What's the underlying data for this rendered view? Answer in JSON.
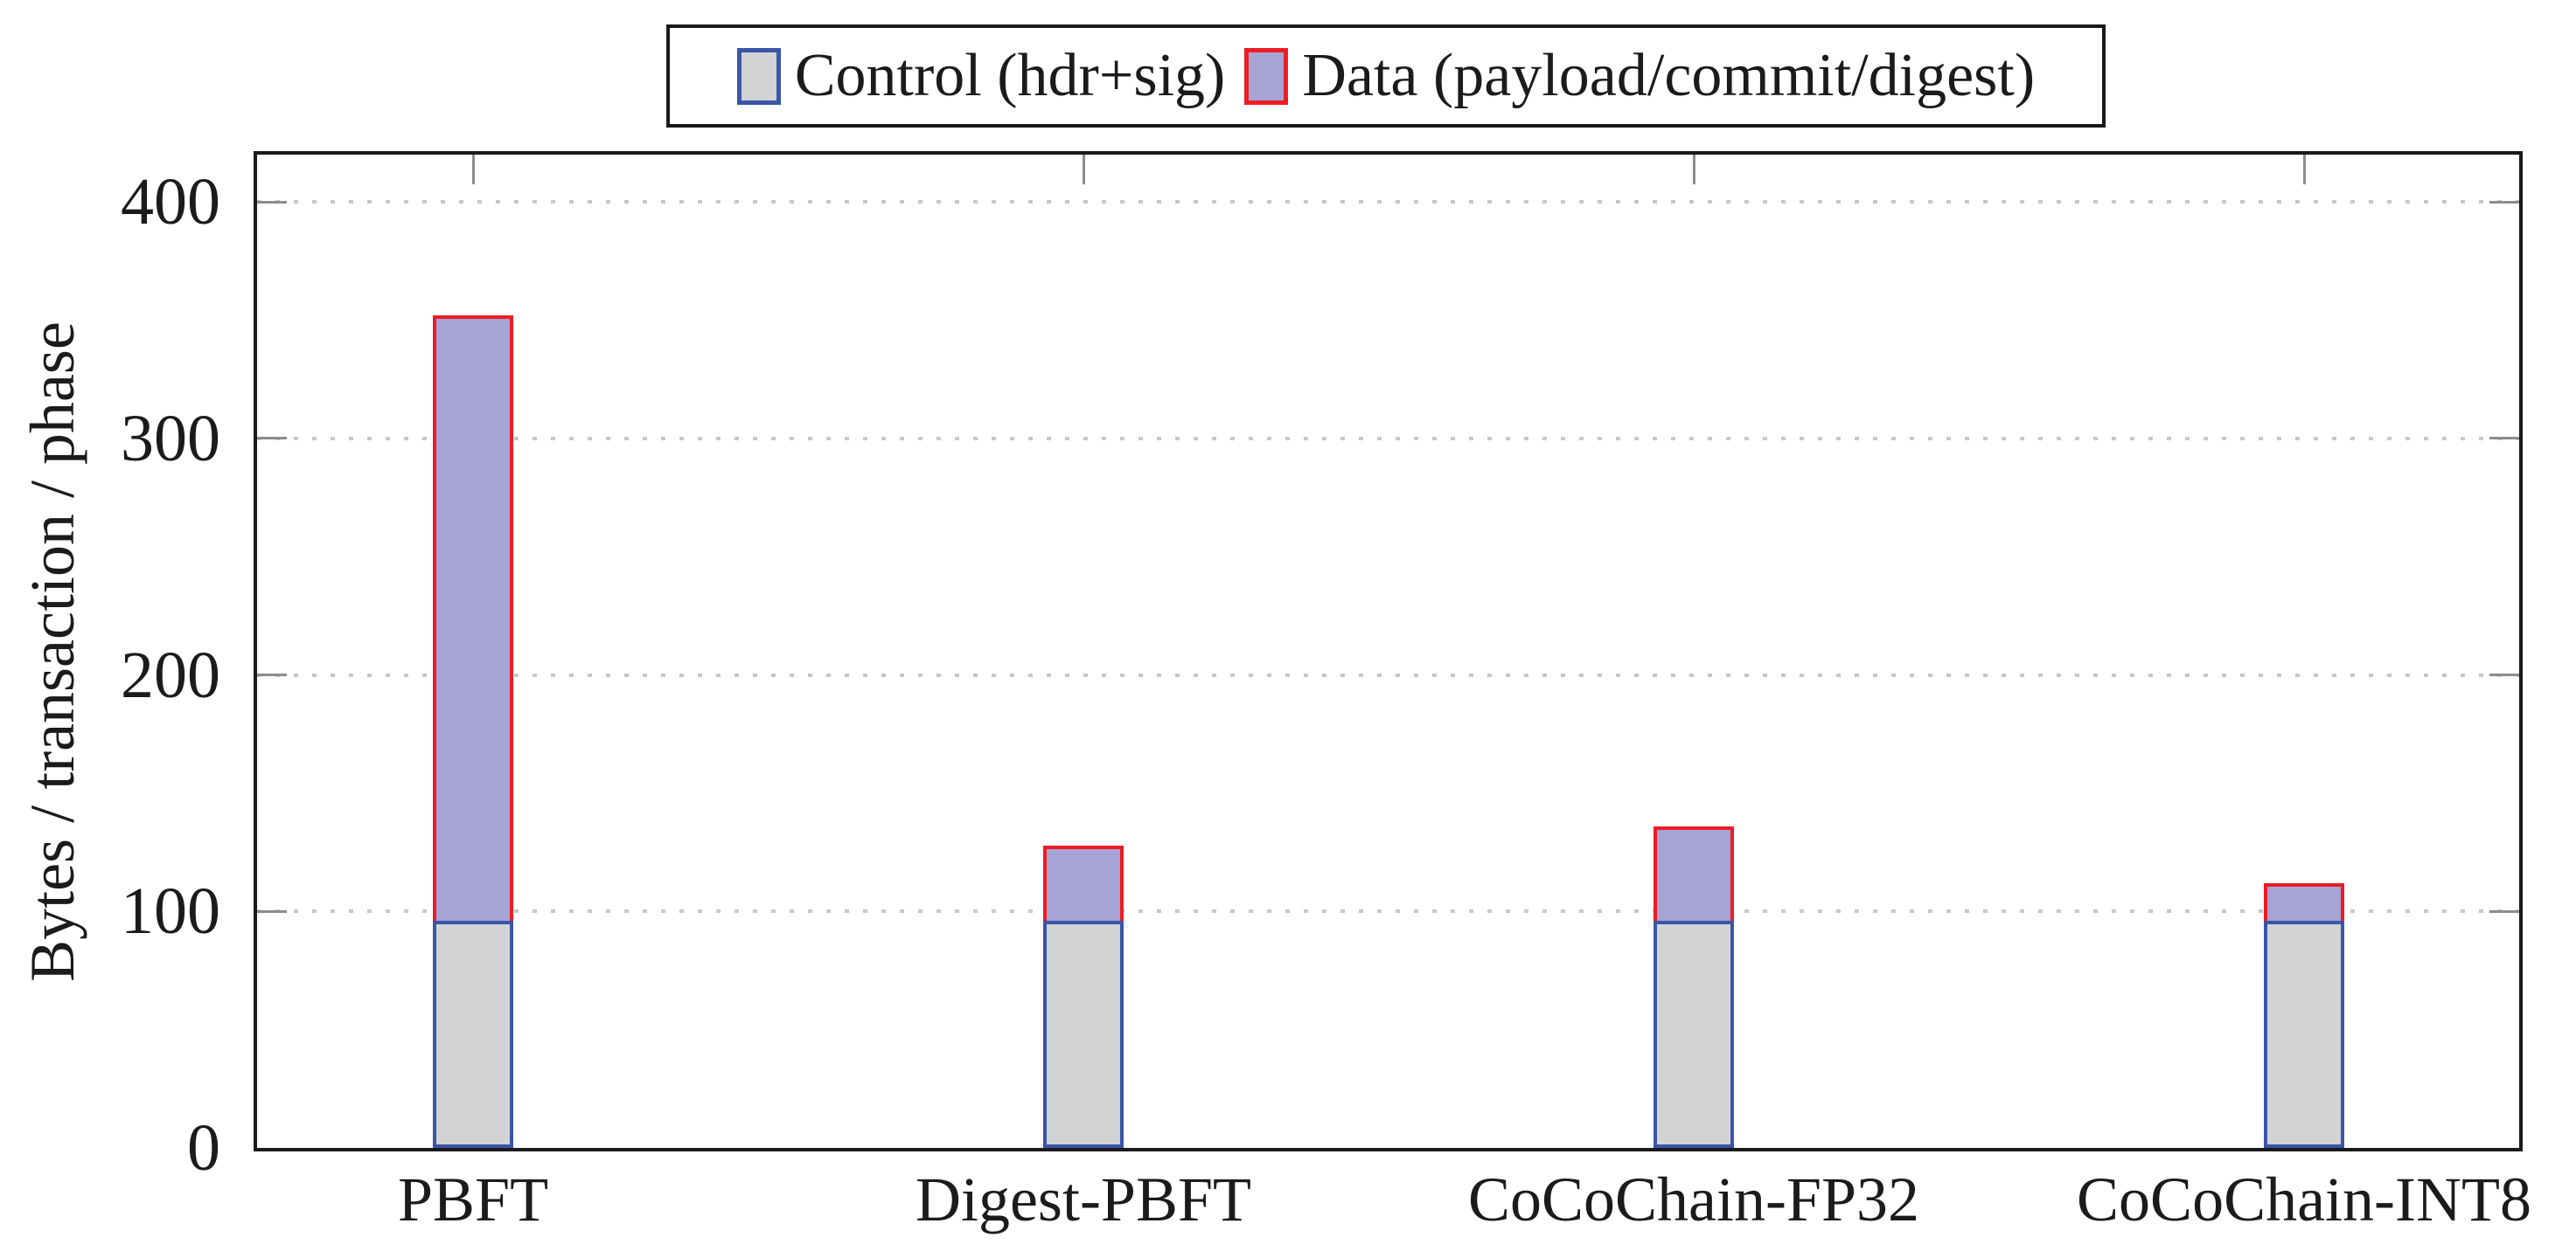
{
  "figure": {
    "background": "#ffffff",
    "axis_color": "#1a1a1a",
    "grid_color": "#c7c7c7",
    "tick_color": "#8c8c8c",
    "y_axis_title": "Bytes / transaction / phase"
  },
  "legend": {
    "position": "top-center-framed",
    "items": [
      {
        "label": "Control (hdr+sig)",
        "fill": "#d1d3d4",
        "border": "#3a55a8"
      },
      {
        "label": "Data (payload/commit/digest)",
        "fill": "#a5a4d4",
        "border": "#ed1c24"
      }
    ]
  },
  "chart_data": {
    "type": "bar",
    "stacked": true,
    "title": "",
    "xlabel": "",
    "ylabel": "Bytes / transaction / phase",
    "categories": [
      "PBFT",
      "Digest-PBFT",
      "CoCoChain-FP32",
      "CoCoChain-INT8"
    ],
    "series": [
      {
        "name": "Control (hdr+sig)",
        "values": [
          96,
          96,
          96,
          96
        ],
        "fill": "#d1d3d4",
        "border": "#3a55a8"
      },
      {
        "name": "Data (payload/commit/digest)",
        "values": [
          256,
          32,
          40,
          16
        ],
        "fill": "#a5a4d4",
        "border": "#ed1c24"
      }
    ],
    "stack_totals": [
      352,
      128,
      136,
      112
    ],
    "yticks": [
      0,
      100,
      200,
      300,
      400
    ],
    "ylim": [
      0,
      420
    ],
    "grid": "dotted-horizontal-at-yticks",
    "legend_position": "top center, framed box above plot"
  }
}
